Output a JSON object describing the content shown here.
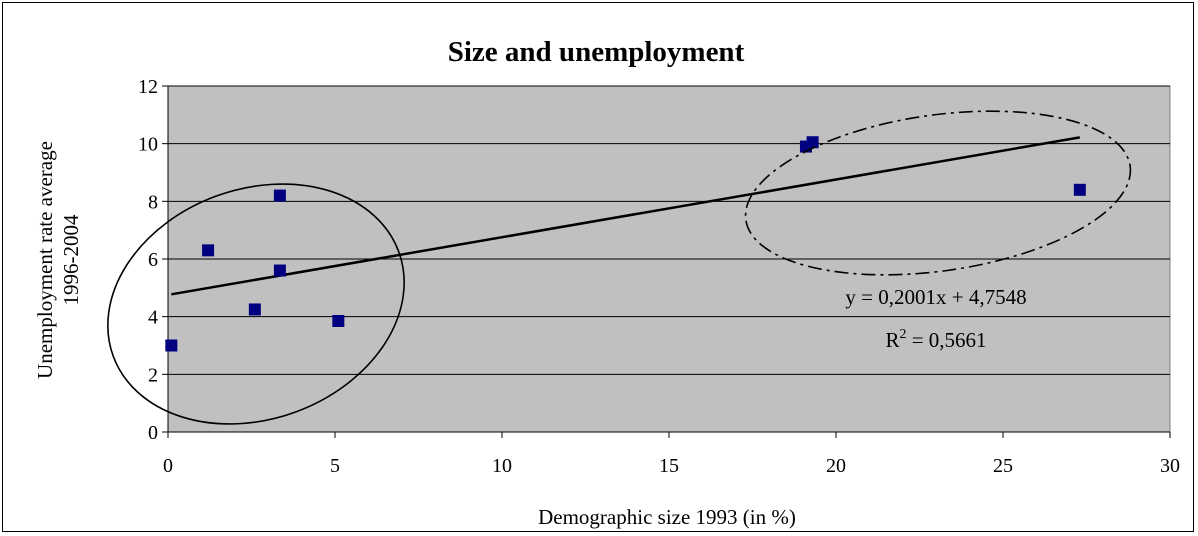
{
  "chart_data": {
    "type": "scatter",
    "title": "Size and unemployment",
    "xlabel": "Demographic size 1993 (in %)",
    "ylabel": [
      "Unemployment rate average",
      "1996-2004"
    ],
    "xlim": [
      0,
      30
    ],
    "ylim": [
      0,
      12
    ],
    "xticks": [
      "0",
      "5",
      "10",
      "15",
      "20",
      "25",
      "30"
    ],
    "yticks": [
      "0",
      "2",
      "4",
      "6",
      "8",
      "10",
      "12"
    ],
    "grid": "horizontal",
    "series": [
      {
        "marker": "square",
        "color": "#000080",
        "points": [
          {
            "x": 0.1,
            "y": 3.0
          },
          {
            "x": 1.2,
            "y": 6.3
          },
          {
            "x": 2.6,
            "y": 4.25
          },
          {
            "x": 3.35,
            "y": 5.6
          },
          {
            "x": 3.35,
            "y": 8.2
          },
          {
            "x": 5.1,
            "y": 3.85
          },
          {
            "x": 19.1,
            "y": 9.9
          },
          {
            "x": 19.3,
            "y": 10.05
          },
          {
            "x": 27.3,
            "y": 8.4
          }
        ]
      }
    ],
    "trendline": {
      "type": "linear",
      "slope": 0.2001,
      "intercept": 4.7548,
      "x_range": [
        0.1,
        27.3
      ],
      "equation": "y = 0,2001x + 4,7548",
      "r2_label": "R",
      "r2_sup": "2",
      "r2_value": " = 0,5661"
    },
    "annotations": [
      {
        "shape": "ellipse",
        "style": "solid"
      },
      {
        "shape": "ellipse",
        "style": "dash-dot"
      }
    ],
    "plot_background": "#c0c0c0"
  }
}
